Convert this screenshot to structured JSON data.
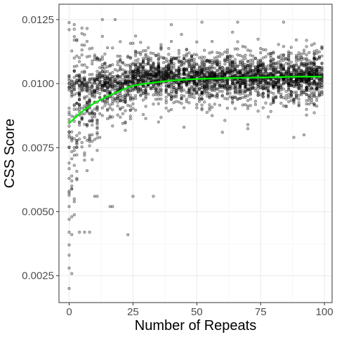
{
  "chart_data": {
    "type": "scatter",
    "title": "",
    "xlabel": "Number of Repeats",
    "ylabel": "CSS Score",
    "xlim": [
      -4,
      103
    ],
    "ylim": [
      0.00145,
      0.0131
    ],
    "x_ticks": [
      0,
      25,
      50,
      75,
      100
    ],
    "x_tick_labels": [
      "0",
      "25",
      "50",
      "75",
      "100"
    ],
    "y_ticks": [
      0.0025,
      0.005,
      0.0075,
      0.01,
      0.0125
    ],
    "y_tick_labels": [
      "0.0025",
      "0.0050",
      "0.0075",
      "0.0100",
      "0.0125"
    ],
    "grid": true,
    "legend": "none",
    "series": [
      {
        "kind": "points",
        "description_points": [
          [
            0,
            0.01
          ],
          [
            0,
            0.002
          ],
          [
            0,
            0.0028
          ],
          [
            0,
            0.0033
          ],
          [
            0,
            0.0037
          ],
          [
            0,
            0.0042
          ],
          [
            0,
            0.0047
          ],
          [
            0,
            0.0052
          ],
          [
            0,
            0.0058
          ],
          [
            0,
            0.0063
          ],
          [
            0,
            0.0069
          ],
          [
            0,
            0.0075
          ],
          [
            0,
            0.0081
          ],
          [
            0,
            0.0088
          ],
          [
            1,
            0.0095
          ],
          [
            1,
            0.0048
          ],
          [
            1,
            0.0062
          ],
          [
            1,
            0.0079
          ],
          [
            2,
            0.0105
          ],
          [
            2,
            0.0055
          ],
          [
            2,
            0.0072
          ],
          [
            3,
            0.009
          ],
          [
            3,
            0.0063
          ],
          [
            4,
            0.0085
          ],
          [
            4,
            0.0042
          ],
          [
            5,
            0.0098
          ],
          [
            5,
            0.0077
          ],
          [
            6,
            0.0042
          ],
          [
            7,
            0.0066
          ],
          [
            8,
            0.0042
          ],
          [
            9,
            0.0087
          ],
          [
            10,
            0.0056
          ],
          [
            11,
            0.0056
          ],
          [
            12,
            0.0079
          ],
          [
            13,
            0.0125
          ],
          [
            15,
            0.009
          ],
          [
            16,
            0.0052
          ],
          [
            17,
            0.0052
          ],
          [
            18,
            0.0125
          ],
          [
            20,
            0.01
          ],
          [
            22,
            0.0085
          ],
          [
            23,
            0.0041
          ],
          [
            25,
            0.0056
          ],
          [
            28,
            0.0104
          ],
          [
            33,
            0.0056
          ],
          [
            35,
            0.0085
          ],
          [
            40,
            0.0123
          ],
          [
            45,
            0.0083
          ],
          [
            52,
            0.0124
          ],
          [
            60,
            0.0081
          ],
          [
            66,
            0.0124
          ],
          [
            70,
            0.0084
          ],
          [
            78,
            0.0087
          ],
          [
            84,
            0.0124
          ],
          [
            88,
            0.0079
          ],
          [
            92,
            0.008
          ],
          [
            96,
            0.0092
          ],
          [
            99,
            0.0114
          ]
        ]
      },
      {
        "name": "",
        "kind": "smooth",
        "color": "#00ee00",
        "x": [
          0,
          5,
          10,
          15,
          20,
          25,
          30,
          40,
          50,
          60,
          70,
          80,
          90,
          99
        ],
        "y": [
          0.00845,
          0.0089,
          0.00925,
          0.0095,
          0.00972,
          0.00992,
          0.01,
          0.01012,
          0.01018,
          0.01021,
          0.01023,
          0.01025,
          0.01027,
          0.01027
        ]
      }
    ],
    "colors": {
      "points": "#000000",
      "smooth": "#00ee00",
      "grid": "#ebebeb",
      "panel_border": "#333333"
    }
  }
}
